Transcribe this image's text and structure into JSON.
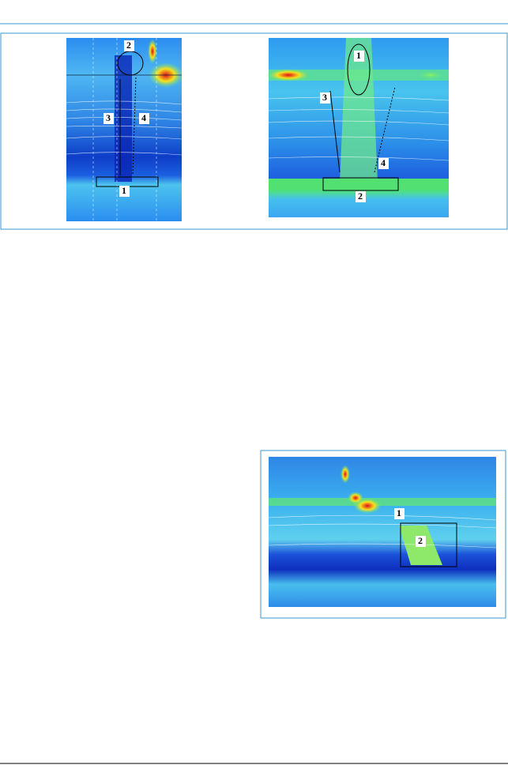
{
  "figures": [
    {
      "panels": [
        {
          "labels": [
            "2",
            "3",
            "4",
            "1"
          ]
        },
        {
          "labels": [
            "1",
            "3",
            "4",
            "2"
          ]
        }
      ]
    },
    {
      "panels": [
        {
          "labels": [
            "1",
            "2"
          ]
        }
      ]
    }
  ]
}
